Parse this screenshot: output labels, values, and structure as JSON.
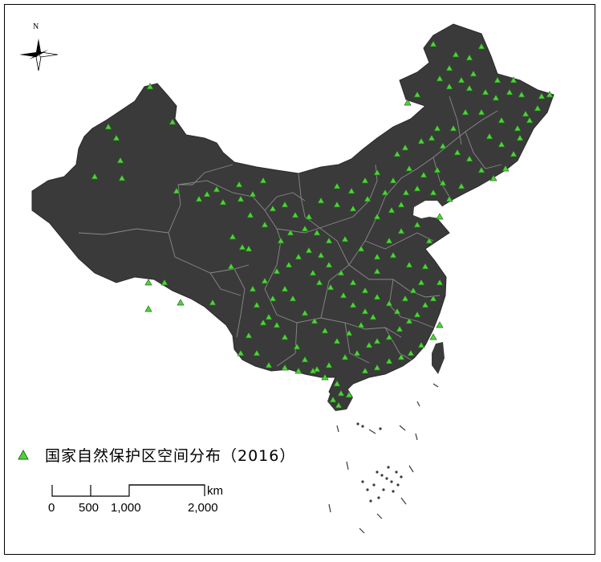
{
  "map": {
    "north_label": "N",
    "legend_label": "国家自然保护区空间分布（2016）",
    "scale": {
      "unit": "km",
      "ticks": [
        "0",
        "500",
        "1,000",
        "2,000"
      ]
    },
    "colors": {
      "land": "#3a3a3a",
      "boundary": "#8a8a8a",
      "marker_fill": "#4cd43c",
      "marker_stroke": "#2a6a1a"
    }
  }
}
